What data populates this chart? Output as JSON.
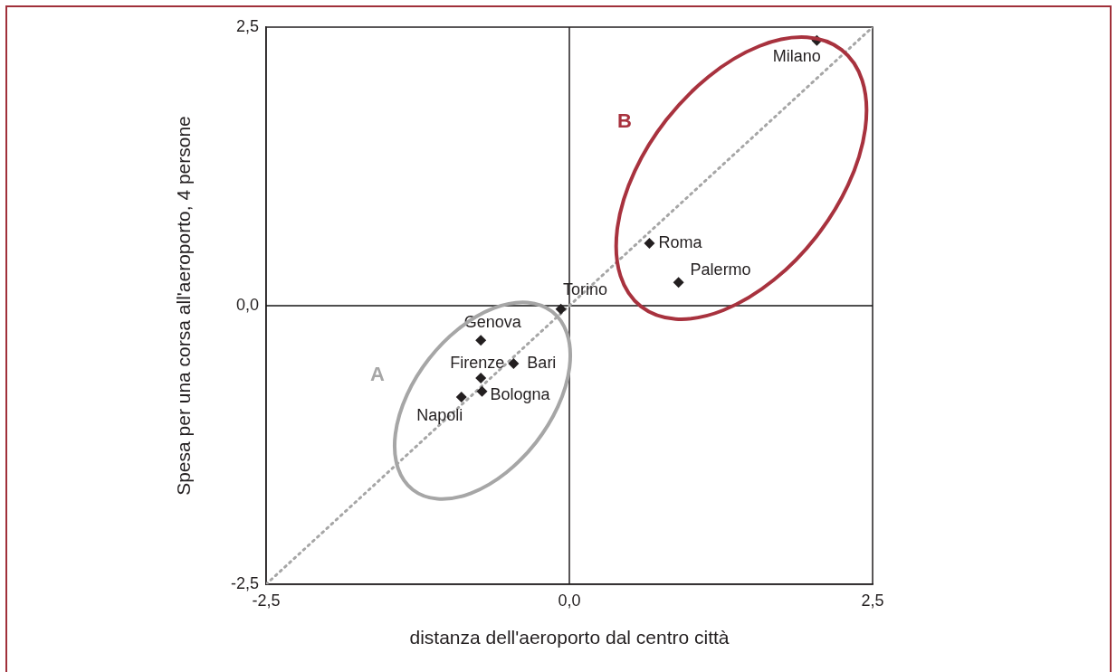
{
  "chart_data": {
    "type": "scatter",
    "xlabel": "distanza dell'aeroporto dal centro città",
    "ylabel": "Spesa per una corsa all'aeroporto, 4 persone",
    "series": [
      {
        "color": "#231f20",
        "x": [
          2.04,
          0.66,
          0.9,
          -0.07,
          -0.73,
          -0.46,
          -0.73,
          -0.72,
          -0.89
        ],
        "values": [
          2.38,
          0.56,
          0.21,
          -0.03,
          -0.31,
          -0.52,
          -0.65,
          -0.77,
          -0.82
        ]
      },
      {
        "type": "line",
        "color": "#a6a6a6",
        "line_style": "dotted",
        "marker": "none",
        "x": [
          -2.5,
          2.5
        ],
        "values": [
          -2.5,
          2.5
        ]
      }
    ],
    "xlim": [
      -2.5,
      2.5
    ],
    "ylim": [
      -2.5,
      2.5
    ],
    "xticks": [
      {
        "value": -2.5,
        "label": "-2,5"
      },
      {
        "value": 0,
        "label": "0,0"
      },
      {
        "value": 2.5,
        "label": "2,5"
      }
    ],
    "yticks": [
      {
        "value": -2.5,
        "label": "-2,5"
      },
      {
        "value": 0,
        "label": "0,0"
      },
      {
        "value": 2.5,
        "label": "2,5"
      }
    ],
    "ref_lines": [
      {
        "axis": "x",
        "value": 0,
        "color": "#231f20"
      },
      {
        "axis": "y",
        "value": 0,
        "color": "#141414"
      }
    ],
    "annotations": [
      {
        "text": "Milano",
        "x": 2.04,
        "y": 2.38
      },
      {
        "text": "Roma",
        "x": 0.66,
        "y": 0.56
      },
      {
        "text": "Palermo",
        "x": 0.9,
        "y": 0.21
      },
      {
        "text": "Torino",
        "x": -0.07,
        "y": -0.03
      },
      {
        "text": "Genova",
        "x": -0.73,
        "y": -0.31
      },
      {
        "text": "Bari",
        "x": -0.46,
        "y": -0.52
      },
      {
        "text": "Firenze",
        "x": -0.73,
        "y": -0.65
      },
      {
        "text": "Bologna",
        "x": -0.72,
        "y": -0.77
      },
      {
        "text": "Napoli",
        "x": -0.89,
        "y": -0.82
      },
      "A",
      "B"
    ],
    "grid": false,
    "legend": false,
    "marker": "diamond"
  }
}
